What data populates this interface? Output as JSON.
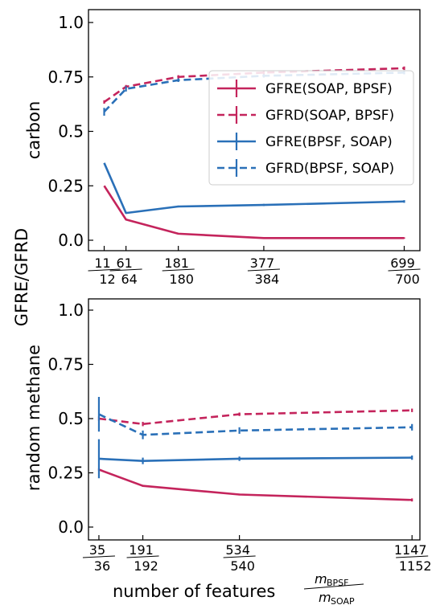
{
  "colors": {
    "gfre_soap_bpsf": "#c4245c",
    "gfrd_soap_bpsf": "#c4245c",
    "gfre_bpsf_soap": "#2a70b8",
    "gfrd_bpsf_soap": "#2a70b8"
  },
  "shared_ylabel": "GFRE/GFRD",
  "shared_xlabel": "number of features",
  "xlabel_fraction": {
    "numerator_base": "m",
    "numerator_sub": "BPSF",
    "denominator_base": "m",
    "denominator_sub": "SOAP"
  },
  "chart_data": [
    {
      "type": "line",
      "panel_label": "carbon",
      "ylim": [
        0,
        1.0
      ],
      "yticks": [
        "0.0",
        "0.25",
        "0.5",
        "0.75",
        "1.0"
      ],
      "xtick_labels": [
        {
          "num": "11",
          "den": "12"
        },
        {
          "num": "61",
          "den": "64"
        },
        {
          "num": "181",
          "den": "180"
        },
        {
          "num": "377",
          "den": "384"
        },
        {
          "num": "699",
          "den": "700"
        }
      ],
      "x": [
        11,
        61,
        181,
        377,
        699
      ],
      "xlim": [
        -25,
        735
      ],
      "legend_position": "center-right",
      "series": [
        {
          "name": "GFRE(SOAP, BPSF)",
          "style": "solid",
          "values": [
            0.25,
            0.095,
            0.03,
            0.01,
            0.01
          ],
          "errors": [
            0,
            0,
            0,
            0,
            0.003
          ]
        },
        {
          "name": "GFRD(SOAP, BPSF)",
          "style": "dashed",
          "values": [
            0.635,
            0.705,
            0.75,
            0.77,
            0.79
          ],
          "errors": [
            0.008,
            0.008,
            0.008,
            0.008,
            0.008
          ]
        },
        {
          "name": "GFRE(BPSF, SOAP)",
          "style": "solid",
          "values": [
            0.355,
            0.125,
            0.155,
            0.162,
            0.178
          ],
          "errors": [
            0,
            0,
            0.004,
            0.005,
            0.006
          ]
        },
        {
          "name": "GFRD(BPSF, SOAP)",
          "style": "dashed",
          "values": [
            0.59,
            0.695,
            0.735,
            0.755,
            0.77
          ],
          "errors": [
            0.018,
            0.012,
            0.008,
            0.008,
            0.008
          ]
        }
      ]
    },
    {
      "type": "line",
      "panel_label": "random methane",
      "ylim": [
        0,
        1.0
      ],
      "yticks": [
        "0.0",
        "0.25",
        "0.5",
        "0.75",
        "1.0"
      ],
      "xtick_labels": [
        {
          "num": "35",
          "den": "36"
        },
        {
          "num": "191",
          "den": "192"
        },
        {
          "num": "534",
          "den": "540"
        },
        {
          "num": "1147",
          "den": "1152"
        }
      ],
      "x": [
        35,
        191,
        534,
        1147
      ],
      "xlim": [
        -2,
        1175
      ],
      "series": [
        {
          "name": "GFRE(SOAP, BPSF)",
          "style": "solid",
          "values": [
            0.265,
            0.19,
            0.15,
            0.125
          ],
          "errors": [
            0.005,
            0.004,
            0.004,
            0.007
          ]
        },
        {
          "name": "GFRD(SOAP, BPSF)",
          "style": "dashed",
          "values": [
            0.5,
            0.475,
            0.52,
            0.538
          ],
          "errors": [
            0.01,
            0.01,
            0.008,
            0.008
          ]
        },
        {
          "name": "GFRE(BPSF, SOAP)",
          "style": "solid",
          "values": [
            0.315,
            0.305,
            0.315,
            0.32
          ],
          "errors": [
            0.09,
            0.015,
            0.01,
            0.01
          ]
        },
        {
          "name": "GFRD(BPSF, SOAP)",
          "style": "dashed",
          "values": [
            0.52,
            0.425,
            0.445,
            0.46
          ],
          "errors": [
            0.08,
            0.02,
            0.015,
            0.015
          ]
        }
      ]
    }
  ]
}
